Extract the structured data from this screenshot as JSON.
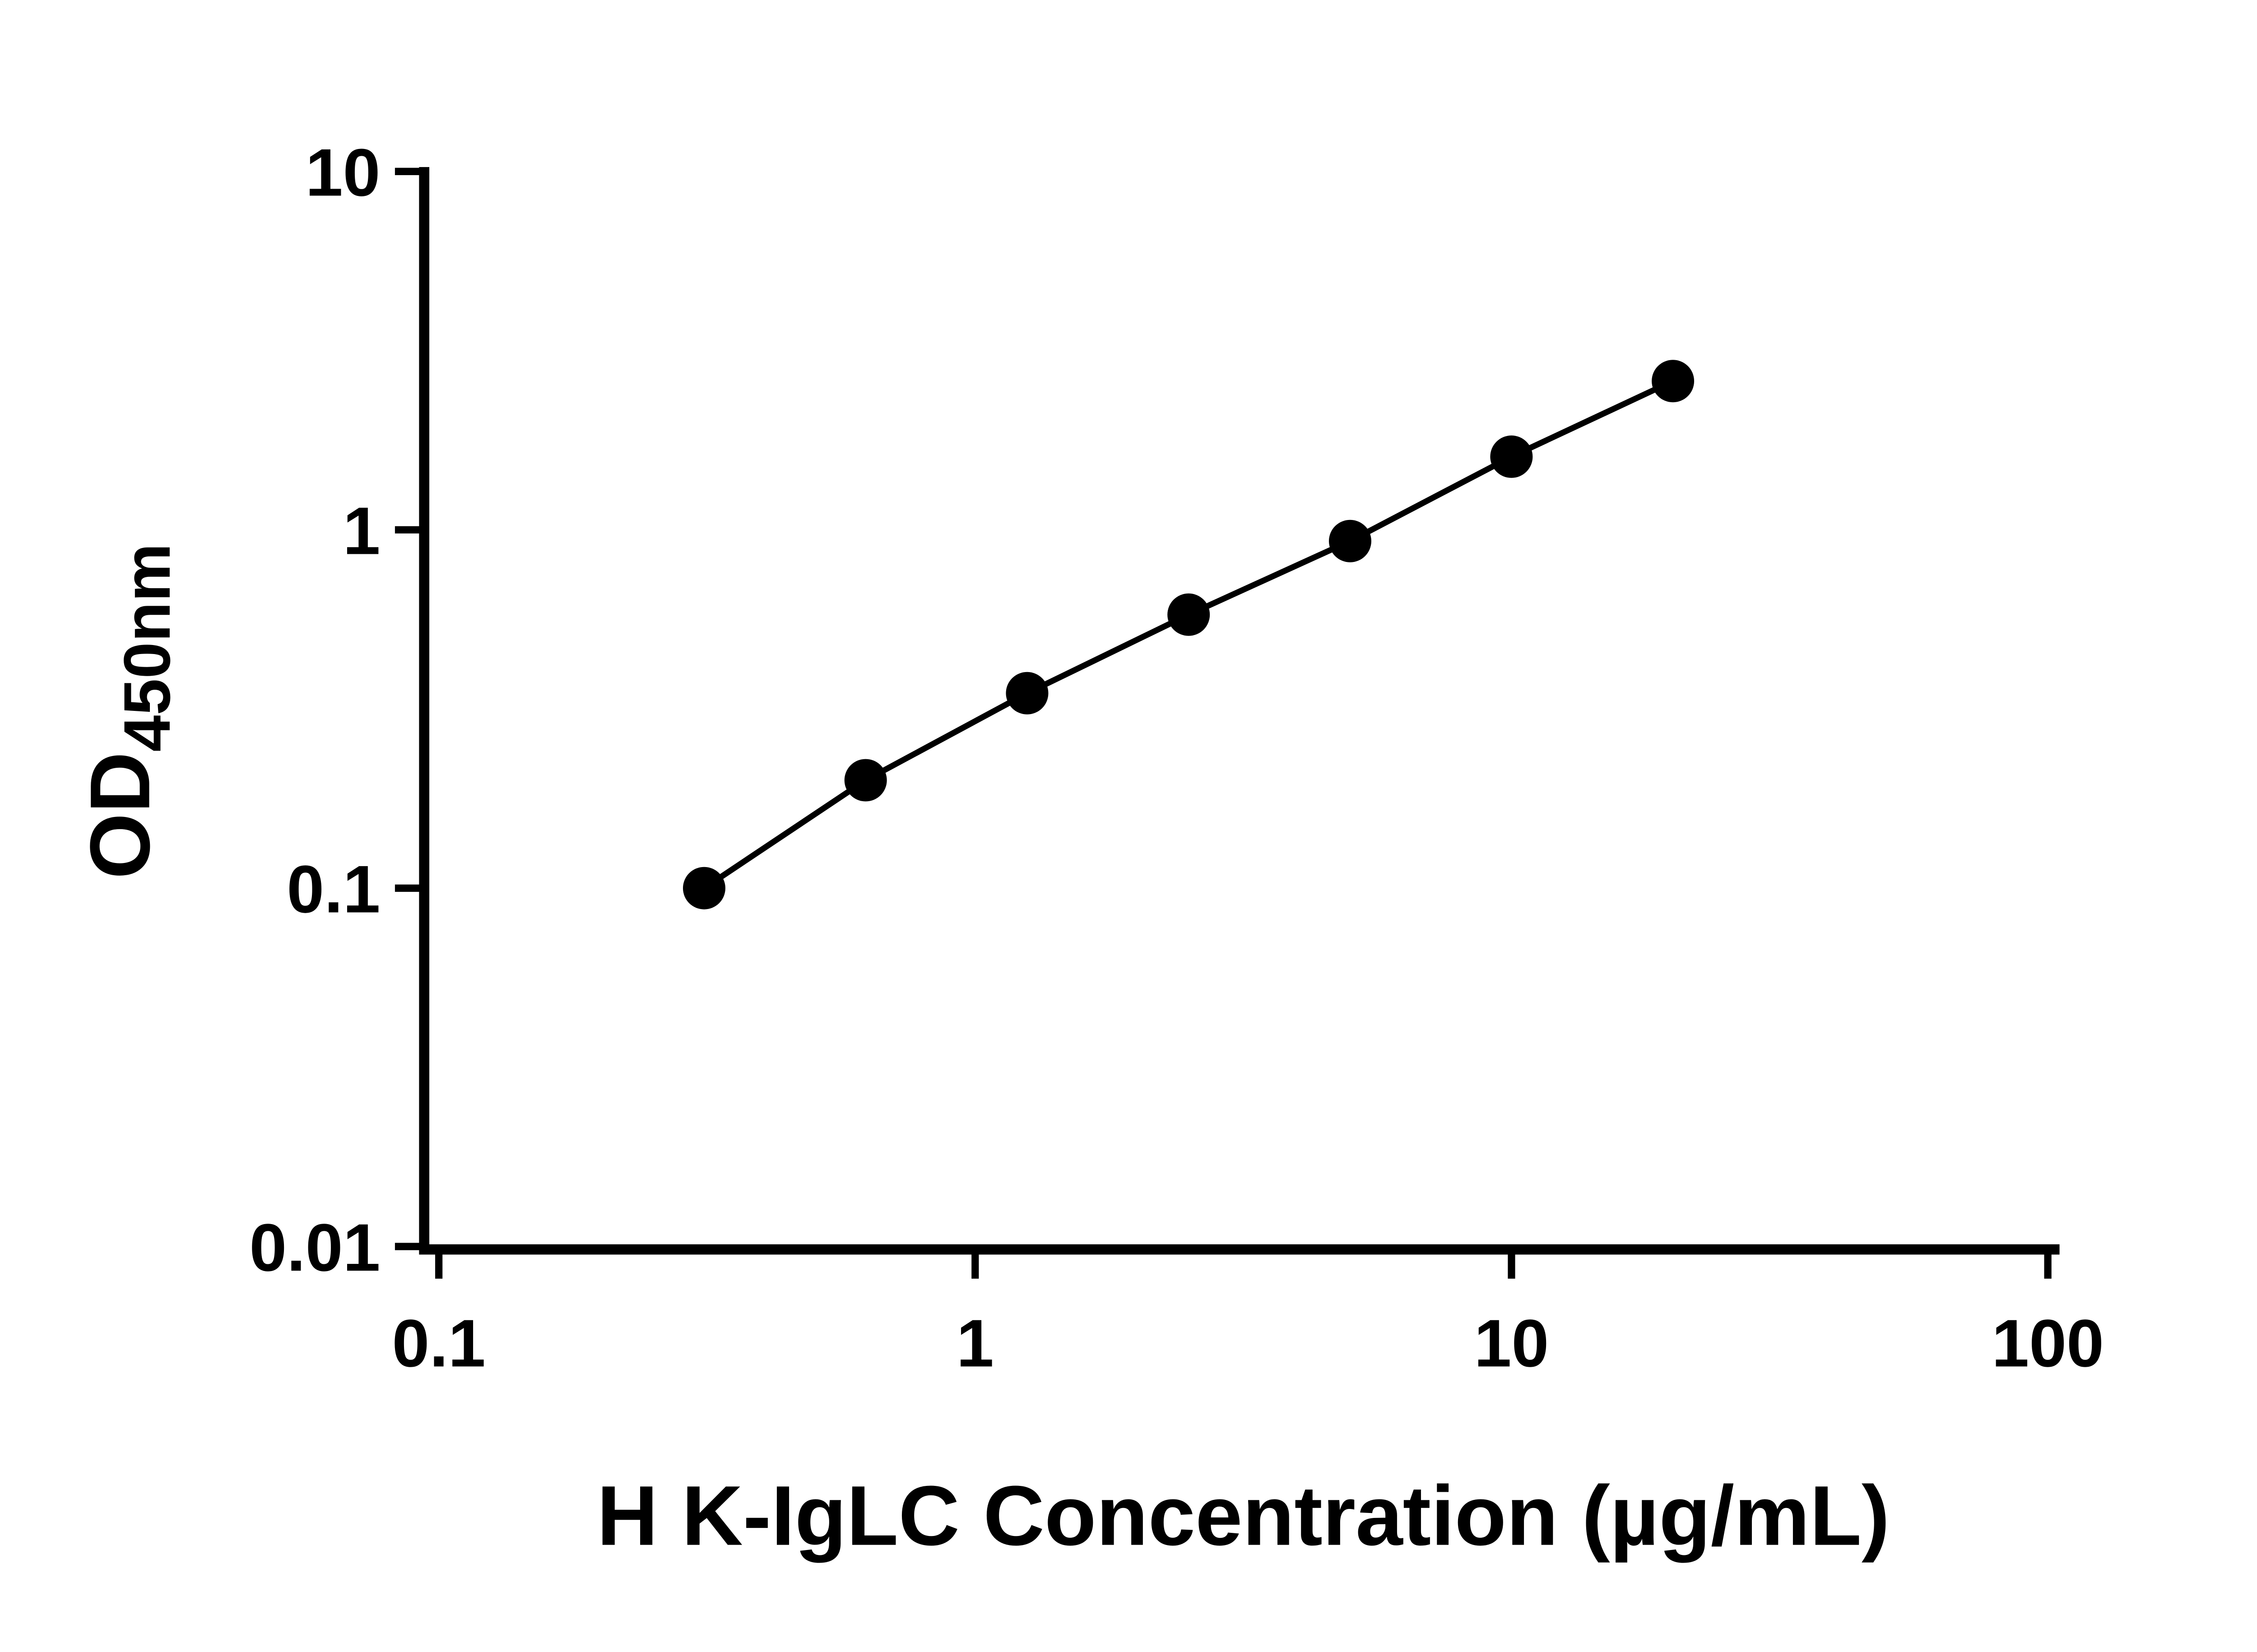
{
  "figure": {
    "background_color": "#ffffff",
    "axis_color": "#000000"
  },
  "chart_data": {
    "type": "scatter",
    "style": "log-log standard curve with connected markers",
    "x": [
      0.3125,
      0.625,
      1.25,
      2.5,
      5,
      10,
      20
    ],
    "y": [
      0.1,
      0.2,
      0.35,
      0.58,
      0.93,
      1.6,
      2.6
    ],
    "x_scale": "log",
    "y_scale": "log",
    "xlim": [
      0.1,
      100
    ],
    "ylim": [
      0.01,
      10
    ],
    "x_tick_values": [
      0.1,
      1,
      10,
      100
    ],
    "x_tick_labels": [
      "0.1",
      "1",
      "10",
      "100"
    ],
    "y_tick_values": [
      0.01,
      0.1,
      1,
      10
    ],
    "y_tick_labels": [
      "0.01",
      "0.1",
      "1",
      "10"
    ],
    "xlabel": "H K-IgLC Concentration (µg/mL)",
    "ylabel_main": "OD",
    "ylabel_sub": "450nm",
    "line_color": "#000000",
    "marker_color": "#000000",
    "grid": false,
    "legend": false,
    "title": ""
  }
}
